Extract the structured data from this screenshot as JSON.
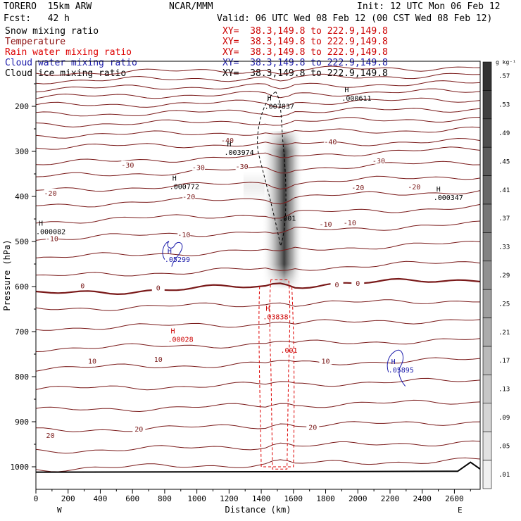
{
  "header": {
    "model": "TORERO  15km ARW",
    "forecast": "Fcst:   42 h",
    "center": "NCAR/MMM",
    "init": "Init: 12 UTC Mon 06 Feb 12",
    "valid": "Valid: 06 UTC Wed 08 Feb 12 (00 CST Wed 08 Feb 12)"
  },
  "legend": [
    {
      "name": "Snow mixing ratio",
      "color": "#000000",
      "xy": "XY=  38.3,149.8 to 222.9,149.8",
      "xy_color": "#cc0000"
    },
    {
      "name": "Temperature",
      "color": "#8b1010",
      "xy": "XY=  38.3,149.8 to 222.9,149.8",
      "xy_color": "#cc0000"
    },
    {
      "name": "Rain water mixing ratio",
      "color": "#dd0000",
      "xy": "XY=  38.3,149.8 to 222.9,149.8",
      "xy_color": "#cc0000"
    },
    {
      "name": "Cloud water mixing ratio",
      "color": "#1a1aaa",
      "xy": "XY=  38.3,149.8 to 222.9,149.8",
      "xy_color": "#1a1aaa"
    },
    {
      "name": "Cloud ice mixing ratio",
      "color": "#000000",
      "xy": "XY=  38.3,149.8 to 222.9,149.8",
      "xy_color": "#000000"
    }
  ],
  "chart_data": {
    "type": "cross-section",
    "xlabel": "Distance (km)",
    "ylabel": "Pressure (hPa)",
    "xlim": [
      0,
      2760
    ],
    "ylim": [
      1050,
      100
    ],
    "x_ticks": [
      0,
      200,
      400,
      600,
      800,
      1000,
      1200,
      1400,
      1600,
      1800,
      2000,
      2200,
      2400,
      2600
    ],
    "y_ticks": [
      200,
      300,
      400,
      500,
      600,
      700,
      800,
      900,
      1000
    ],
    "x_end_labels": {
      "west": "W",
      "east": "E"
    },
    "colorbar": {
      "unit": "g kg⁻¹",
      "levels": [
        ".01",
        ".05",
        ".09",
        ".13",
        ".17",
        ".21",
        ".25",
        ".29",
        ".33",
        ".37",
        ".41",
        ".45",
        ".49",
        ".53",
        ".57"
      ]
    },
    "temperature_contour_labels": [
      {
        "label": "-40",
        "x": 1190,
        "p": 275
      },
      {
        "label": "-40",
        "x": 1830,
        "p": 278
      },
      {
        "label": "-30",
        "x": 570,
        "p": 330
      },
      {
        "label": "-30",
        "x": 1010,
        "p": 335
      },
      {
        "label": "-30",
        "x": 1280,
        "p": 333
      },
      {
        "label": "-30",
        "x": 2130,
        "p": 320
      },
      {
        "label": "-20",
        "x": 90,
        "p": 392
      },
      {
        "label": "-20",
        "x": 950,
        "p": 400
      },
      {
        "label": "-20",
        "x": 2000,
        "p": 380
      },
      {
        "label": "-20",
        "x": 2350,
        "p": 378
      },
      {
        "label": "-10",
        "x": 100,
        "p": 493
      },
      {
        "label": "-10",
        "x": 920,
        "p": 484
      },
      {
        "label": "-10",
        "x": 1800,
        "p": 461
      },
      {
        "label": "-10",
        "x": 1950,
        "p": 458
      },
      {
        "label": "0",
        "x": 290,
        "p": 598
      },
      {
        "label": "0",
        "x": 760,
        "p": 602
      },
      {
        "label": "0",
        "x": 1870,
        "p": 595
      },
      {
        "label": "0",
        "x": 2000,
        "p": 592
      },
      {
        "label": "10",
        "x": 350,
        "p": 765
      },
      {
        "label": "10",
        "x": 760,
        "p": 761
      },
      {
        "label": "10",
        "x": 1800,
        "p": 765
      },
      {
        "label": "20",
        "x": 90,
        "p": 930
      },
      {
        "label": "20",
        "x": 640,
        "p": 916
      },
      {
        "label": "20",
        "x": 1720,
        "p": 912
      }
    ],
    "extrema": [
      {
        "kind": "H",
        "value": ".007837",
        "x": 1420,
        "p": 190,
        "field": "Snow mixing ratio"
      },
      {
        "kind": "H",
        "value": ".000611",
        "x": 1900,
        "p": 172,
        "field": "Snow mixing ratio"
      },
      {
        "kind": "H",
        "value": ".003974",
        "x": 1170,
        "p": 292,
        "field": "Snow mixing ratio"
      },
      {
        "kind": "H",
        "value": ".000772",
        "x": 830,
        "p": 368,
        "field": "Snow mixing ratio"
      },
      {
        "kind": "H",
        "value": ".000347",
        "x": 2470,
        "p": 392,
        "field": "Snow mixing ratio"
      },
      {
        "kind": "H",
        "value": ".000082",
        "x": 0,
        "p": 468,
        "field": "Snow mixing ratio"
      },
      {
        "kind": "H",
        "value": ".05299",
        "x": 800,
        "p": 530,
        "field": "Cloud water mixing ratio"
      },
      {
        "kind": "H",
        "value": ".05895",
        "x": 2190,
        "p": 775,
        "field": "Cloud water mixing ratio"
      },
      {
        "kind": "H",
        "value": ".03838",
        "x": 1410,
        "p": 657,
        "field": "Rain water mixing ratio"
      },
      {
        "kind": "H",
        "value": ".00028",
        "x": 820,
        "p": 707,
        "field": "Rain water mixing ratio"
      }
    ],
    "contour_value_labels": [
      {
        "label": ".001",
        "x": 1510,
        "p": 448,
        "color": "#000000"
      },
      {
        "label": ".001",
        "x": 1520,
        "p": 741,
        "color": "#cc0000"
      }
    ]
  }
}
